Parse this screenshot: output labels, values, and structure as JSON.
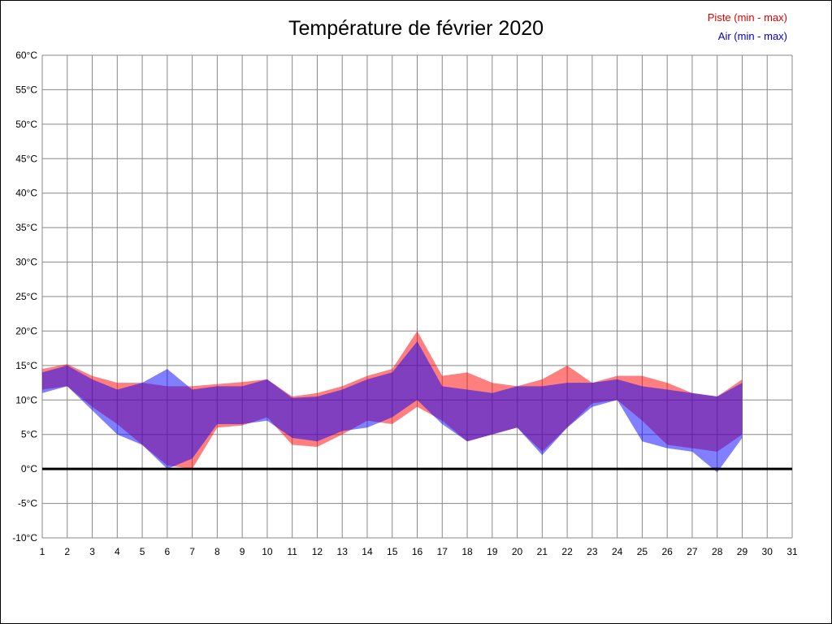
{
  "title": "Température de février 2020",
  "legend": [
    {
      "label": "Piste (min - max)",
      "color": "#dd0000"
    },
    {
      "label": "Air (min - max)",
      "color": "#0000cc"
    }
  ],
  "chart_data": {
    "type": "area",
    "title": "Température de février 2020",
    "xlabel": "",
    "ylabel": "",
    "xlim": [
      1,
      31
    ],
    "ylim": [
      -10,
      60
    ],
    "grid": true,
    "grid_color": "#888888",
    "zero_line_value": 0,
    "zero_line_color": "#000000",
    "legend_position": "top-right",
    "x": [
      1,
      2,
      3,
      4,
      5,
      6,
      7,
      8,
      9,
      10,
      11,
      12,
      13,
      14,
      15,
      16,
      17,
      18,
      19,
      20,
      21,
      22,
      23,
      24,
      25,
      26,
      27,
      28,
      29
    ],
    "series": [
      {
        "name": "Piste (min - max)",
        "color": "#ff0000",
        "opacity": 0.5,
        "min": [
          11.5,
          12,
          9,
          6.5,
          3.5,
          0.5,
          0,
          6,
          6.3,
          7.5,
          3.5,
          3.2,
          5,
          7,
          6.5,
          9,
          7,
          4,
          5,
          6,
          2.5,
          6,
          9.5,
          10,
          7,
          3.5,
          3,
          2.5,
          5
        ],
        "max": [
          14.5,
          15.2,
          13.5,
          12.5,
          12.5,
          12,
          12,
          12.3,
          12.6,
          13,
          10.5,
          11,
          12,
          13.5,
          14.5,
          20,
          13.5,
          14,
          12.5,
          12,
          13,
          15,
          12.5,
          13.5,
          13.5,
          12.5,
          11,
          10.5,
          13
        ]
      },
      {
        "name": "Air (min - max)",
        "color": "#0000ff",
        "opacity": 0.5,
        "min": [
          11,
          12,
          8.5,
          5,
          3.5,
          0,
          1.5,
          6.5,
          6.5,
          7,
          4.5,
          4,
          5.5,
          6,
          7.5,
          10,
          6.5,
          4,
          5,
          6,
          2,
          6,
          9,
          10,
          4,
          3,
          2.5,
          -0.5,
          4.5
        ],
        "max": [
          14,
          15,
          13,
          11.5,
          12.5,
          14.5,
          11.5,
          12,
          12,
          13,
          10.3,
          10.5,
          11.5,
          13,
          14,
          18.5,
          12,
          11.5,
          11,
          12,
          12,
          12.5,
          12.5,
          13,
          12,
          11.5,
          11,
          10.5,
          12.5
        ]
      }
    ],
    "xticks": [
      {
        "v": 1,
        "label": "1"
      },
      {
        "v": 2,
        "label": "2"
      },
      {
        "v": 3,
        "label": "3"
      },
      {
        "v": 4,
        "label": "4"
      },
      {
        "v": 5,
        "label": "5"
      },
      {
        "v": 6,
        "label": "6"
      },
      {
        "v": 7,
        "label": "7"
      },
      {
        "v": 8,
        "label": "8"
      },
      {
        "v": 9,
        "label": "9"
      },
      {
        "v": 10,
        "label": "10"
      },
      {
        "v": 11,
        "label": "11"
      },
      {
        "v": 12,
        "label": "12"
      },
      {
        "v": 13,
        "label": "13"
      },
      {
        "v": 14,
        "label": "14"
      },
      {
        "v": 15,
        "label": "15"
      },
      {
        "v": 16,
        "label": "16"
      },
      {
        "v": 17,
        "label": "17"
      },
      {
        "v": 18,
        "label": "18"
      },
      {
        "v": 19,
        "label": "19"
      },
      {
        "v": 20,
        "label": "20"
      },
      {
        "v": 21,
        "label": "21"
      },
      {
        "v": 22,
        "label": "22"
      },
      {
        "v": 23,
        "label": "23"
      },
      {
        "v": 24,
        "label": "24"
      },
      {
        "v": 25,
        "label": "25"
      },
      {
        "v": 26,
        "label": "26"
      },
      {
        "v": 27,
        "label": "27"
      },
      {
        "v": 28,
        "label": "28"
      },
      {
        "v": 29,
        "label": "29"
      },
      {
        "v": 30,
        "label": "30"
      },
      {
        "v": 31,
        "label": "31"
      }
    ],
    "yticks": [
      {
        "v": 60,
        "label": "60°C"
      },
      {
        "v": 55,
        "label": "55°C"
      },
      {
        "v": 50,
        "label": "50°C"
      },
      {
        "v": 45,
        "label": "45°C"
      },
      {
        "v": 40,
        "label": "40°C"
      },
      {
        "v": 35,
        "label": "35°C"
      },
      {
        "v": 30,
        "label": "30°C"
      },
      {
        "v": 25,
        "label": "25°C"
      },
      {
        "v": 20,
        "label": "20°C"
      },
      {
        "v": 15,
        "label": "15°C"
      },
      {
        "v": 10,
        "label": "10°C"
      },
      {
        "v": 5,
        "label": "5°C"
      },
      {
        "v": 0,
        "label": "0°C"
      },
      {
        "v": -5,
        "label": "-5°C"
      },
      {
        "v": -10,
        "label": "-10°C"
      }
    ]
  }
}
